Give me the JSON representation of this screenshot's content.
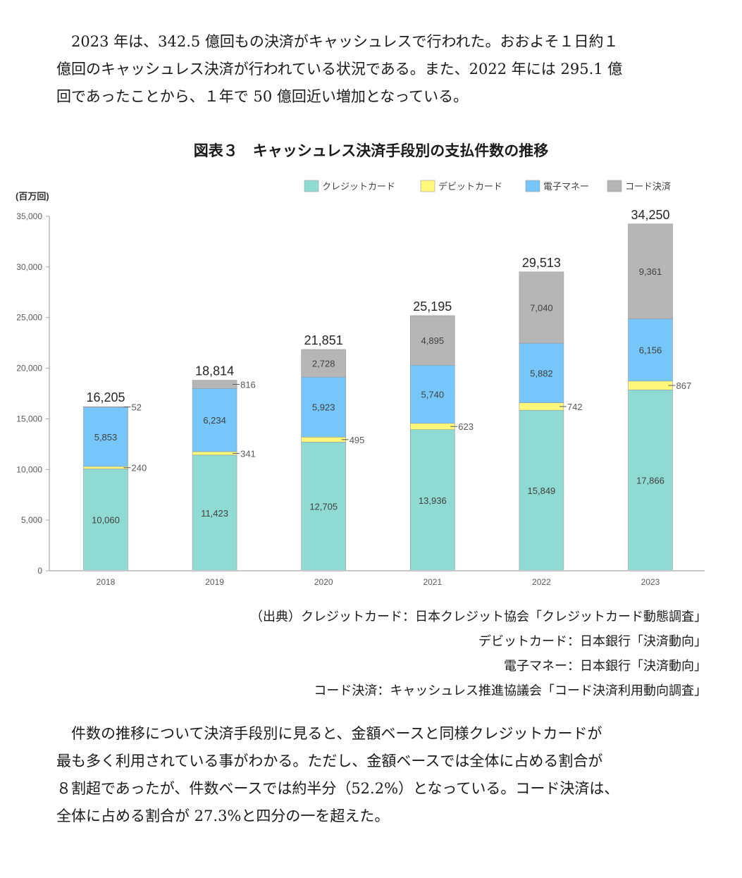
{
  "intro_paragraph": [
    "　2023 年は、342.5 億回もの決済がキャッシュレスで行われた。おおよそ１日約１",
    "億回のキャッシュレス決済が行われている状況である。また、2022 年には 295.1 億",
    "回であったことから、１年で 50 億回近い増加となっている。"
  ],
  "figure_title": "図表３　キャッシュレス決済手段別の支払件数の推移",
  "chart_data": {
    "type": "bar",
    "stacked": true,
    "title": "図表３　キャッシュレス決済手段別の支払件数の推移",
    "ylabel": "(百万回)",
    "xlabel": "",
    "ylim": [
      0,
      35000
    ],
    "yticks": [
      0,
      5000,
      10000,
      15000,
      20000,
      25000,
      30000,
      35000
    ],
    "ytick_labels": [
      "0",
      "5,000",
      "10,000",
      "15,000",
      "20,000",
      "25,000",
      "30,000",
      "35,000"
    ],
    "grid": false,
    "legend_position": "top-right",
    "categories": [
      "2018",
      "2019",
      "2020",
      "2021",
      "2022",
      "2023"
    ],
    "series": [
      {
        "name": "クレジットカード",
        "color": "#8fdbd4",
        "values": [
          10060,
          11423,
          12705,
          13936,
          15849,
          17866
        ],
        "labels": [
          "10,060",
          "11,423",
          "12,705",
          "13,936",
          "15,849",
          "17,866"
        ],
        "label_outside": [
          false,
          false,
          false,
          false,
          false,
          false
        ]
      },
      {
        "name": "デビットカード",
        "color": "#fef77a",
        "values": [
          240,
          341,
          495,
          623,
          742,
          867
        ],
        "labels": [
          "240",
          "341",
          "495",
          "623",
          "742",
          "867"
        ],
        "label_outside": [
          true,
          true,
          true,
          true,
          true,
          true
        ]
      },
      {
        "name": "電子マネー",
        "color": "#76c6f9",
        "values": [
          5853,
          6234,
          5923,
          5740,
          5882,
          6156
        ],
        "labels": [
          "5,853",
          "6,234",
          "5,923",
          "5,740",
          "5,882",
          "6,156"
        ],
        "label_outside": [
          false,
          false,
          false,
          false,
          false,
          false
        ]
      },
      {
        "name": "コード決済",
        "color": "#b6b6b6",
        "values": [
          52,
          816,
          2728,
          4895,
          7040,
          9361
        ],
        "labels": [
          "52",
          "816",
          "2,728",
          "4,895",
          "7,040",
          "9,361"
        ],
        "label_outside": [
          true,
          true,
          false,
          false,
          false,
          false
        ]
      }
    ],
    "totals": [
      16205,
      18814,
      21851,
      25195,
      29513,
      34250
    ],
    "total_labels": [
      "16,205",
      "18,814",
      "21,851",
      "25,195",
      "29,513",
      "34,250"
    ]
  },
  "sources": [
    "（出典）クレジットカード：日本クレジット協会「クレジットカード動態調査」",
    "デビットカード：日本銀行「決済動向」",
    "電子マネー：日本銀行「決済動向」",
    "コード決済：キャッシュレス推進協議会「コード決済利用動向調査」"
  ],
  "closing_paragraph": [
    "　件数の推移について決済手段別に見ると、金額ベースと同様クレジットカードが",
    "最も多く利用されている事がわかる。ただし、金額ベースでは全体に占める割合が",
    "８割超であったが、件数ベースでは約半分（52.2%）となっている。コード決済は、",
    "全体に占める割合が 27.3%と四分の一を超えた。"
  ]
}
